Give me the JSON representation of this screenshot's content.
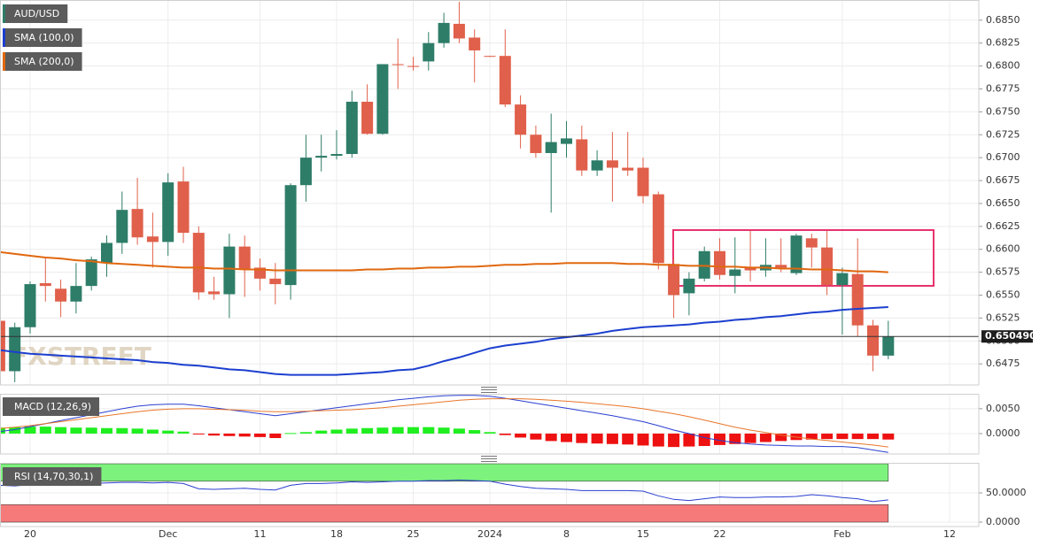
{
  "chart_data": [
    {
      "type": "candlestick",
      "grid": true,
      "categories": [
        null,
        null,
        "20",
        null,
        null,
        null,
        null,
        null,
        null,
        null,
        null,
        "Dec",
        null,
        null,
        null,
        null,
        null,
        "11",
        null,
        null,
        null,
        null,
        "18",
        null,
        null,
        null,
        null,
        "25",
        null,
        null,
        null,
        null,
        "2024",
        null,
        null,
        null,
        null,
        "8",
        null,
        null,
        null,
        null,
        "15",
        null,
        null,
        null,
        null,
        "22",
        null,
        null,
        null,
        null,
        null,
        null,
        null,
        "Feb",
        null,
        null,
        null,
        null,
        null,
        null,
        "12",
        null
      ],
      "series": [
        {
          "name": "AUD/USD",
          "up_color": "#2e7d68",
          "down_color": "#e0604b",
          "open": [
            0.6522,
            0.6467,
            0.6515,
            0.6563,
            0.6557,
            0.6543,
            0.656,
            0.6585,
            0.6607,
            0.6644,
            0.6614,
            0.6608,
            0.6674,
            0.6618,
            0.6554,
            0.6551,
            0.6603,
            0.658,
            0.6568,
            0.6561,
            0.667,
            0.67,
            0.6702,
            0.6704,
            0.6761,
            0.6726,
            0.6802,
            0.68,
            0.6805,
            0.6825,
            0.6846,
            0.6831,
            0.6811,
            0.6811,
            0.6758,
            0.6725,
            0.6705,
            0.6715,
            0.672,
            0.6686,
            0.6697,
            0.6689,
            0.6689,
            0.666,
            0.6584,
            0.6552,
            0.6568,
            0.6598,
            0.6571,
            0.658,
            0.6577,
            0.6583,
            0.6574,
            0.6612,
            0.6602,
            0.6561,
            0.6573,
            0.6517,
            0.6484,
            null,
            null,
            null,
            null,
            null
          ],
          "high": [
            0.653,
            0.652,
            0.6565,
            0.659,
            0.6567,
            0.6585,
            0.6592,
            0.6615,
            0.6663,
            0.6678,
            0.664,
            0.6683,
            0.669,
            0.6625,
            0.657,
            0.6617,
            0.6615,
            0.659,
            0.6585,
            0.6672,
            0.6725,
            0.6725,
            0.673,
            0.6773,
            0.678,
            0.6802,
            0.683,
            0.681,
            0.6837,
            0.6858,
            0.687,
            0.684,
            0.6811,
            0.684,
            0.6768,
            0.6735,
            0.6748,
            0.674,
            0.6735,
            0.6708,
            0.6728,
            0.6728,
            0.67,
            0.6663,
            0.659,
            0.6575,
            0.6603,
            0.6612,
            0.6613,
            0.662,
            0.6612,
            0.6612,
            0.6617,
            0.6617,
            0.662,
            0.658,
            0.6612,
            0.6523,
            0.6522,
            null,
            null,
            null,
            null,
            null
          ],
          "low": [
            0.646,
            0.6455,
            0.6508,
            0.6543,
            0.6526,
            0.653,
            0.6555,
            0.657,
            0.6595,
            0.6605,
            0.658,
            0.6593,
            0.6607,
            0.6545,
            0.6545,
            0.6525,
            0.6548,
            0.6555,
            0.654,
            0.6545,
            0.6652,
            0.6685,
            0.6698,
            0.67,
            0.6725,
            0.6725,
            0.6775,
            0.6795,
            0.6795,
            0.682,
            0.6825,
            0.6782,
            0.681,
            0.6755,
            0.671,
            0.67,
            0.664,
            0.67,
            0.668,
            0.668,
            0.6652,
            0.668,
            0.665,
            0.6578,
            0.6525,
            0.6528,
            0.6565,
            0.6567,
            0.6552,
            0.6565,
            0.657,
            0.6575,
            0.6572,
            0.658,
            0.655,
            0.6507,
            0.6505,
            0.6467,
            0.648,
            null,
            null,
            null,
            null,
            null
          ],
          "close": [
            0.6467,
            0.6515,
            0.6562,
            0.656,
            0.6543,
            0.656,
            0.6589,
            0.6607,
            0.6643,
            0.6613,
            0.6608,
            0.6673,
            0.6618,
            0.6553,
            0.6551,
            0.6603,
            0.6578,
            0.6568,
            0.6562,
            0.667,
            0.67,
            0.6702,
            0.6704,
            0.6761,
            0.6726,
            0.6802,
            0.6801,
            0.6799,
            0.6825,
            0.6847,
            0.683,
            0.6817,
            0.681,
            0.6758,
            0.6725,
            0.6705,
            0.6717,
            0.6721,
            0.6686,
            0.6697,
            0.6689,
            0.6686,
            0.6658,
            0.6585,
            0.655,
            0.6568,
            0.6598,
            0.6572,
            0.6578,
            0.6577,
            0.6583,
            0.658,
            0.6615,
            0.6602,
            0.6561,
            0.6574,
            0.6517,
            0.6484,
            0.6505,
            null,
            null,
            null,
            null,
            null
          ]
        },
        {
          "name": "SMA (100,0)",
          "color": "#1c3fcf",
          "values": [
            0.649,
            0.6488,
            0.6486,
            0.6485,
            0.6484,
            0.6483,
            0.6482,
            0.6481,
            0.648,
            0.6479,
            0.6477,
            0.6476,
            0.6474,
            0.6473,
            0.6471,
            0.6469,
            0.6468,
            0.6466,
            0.6464,
            0.6463,
            0.6463,
            0.6463,
            0.6463,
            0.6464,
            0.6465,
            0.6466,
            0.6468,
            0.6469,
            0.6473,
            0.6478,
            0.6482,
            0.6487,
            0.6492,
            0.6495,
            0.6497,
            0.6499,
            0.6502,
            0.6504,
            0.6506,
            0.6508,
            0.6511,
            0.6513,
            0.6515,
            0.6516,
            0.6517,
            0.6518,
            0.652,
            0.6521,
            0.6523,
            0.6524,
            0.6526,
            0.6527,
            0.6529,
            0.6531,
            0.6532,
            0.6534,
            0.6535,
            0.6536,
            0.6537,
            null,
            null,
            null,
            null,
            null
          ]
        },
        {
          "name": "SMA (200,0)",
          "color": "#e0680f",
          "values": [
            0.6597,
            0.6595,
            0.6593,
            0.6591,
            0.659,
            0.6588,
            0.6587,
            0.6585,
            0.6584,
            0.6583,
            0.6582,
            0.6581,
            0.658,
            0.658,
            0.6579,
            0.6579,
            0.6578,
            0.6578,
            0.6577,
            0.6577,
            0.6577,
            0.6577,
            0.6577,
            0.6577,
            0.6578,
            0.6578,
            0.6579,
            0.6579,
            0.658,
            0.658,
            0.6581,
            0.6581,
            0.6582,
            0.6583,
            0.6583,
            0.6584,
            0.6584,
            0.6585,
            0.6585,
            0.6585,
            0.6585,
            0.6584,
            0.6584,
            0.6583,
            0.6583,
            0.6582,
            0.6582,
            0.6581,
            0.6581,
            0.658,
            0.658,
            0.6579,
            0.6579,
            0.6578,
            0.6578,
            0.6577,
            0.6576,
            0.6576,
            0.6575,
            null,
            null,
            null,
            null,
            null
          ]
        }
      ],
      "last_price": {
        "value": 0.65049,
        "label": "0.650490"
      },
      "ylim": [
        0.6452,
        0.6872
      ],
      "yticks": [
        0.6475,
        {
          "value": 0.65,
          "label": "0.6500"
        },
        0.6525,
        {
          "value": 0.655,
          "label": "0.6550"
        },
        0.6575,
        {
          "value": 0.66,
          "label": "0.6600"
        },
        0.6625,
        {
          "value": 0.665,
          "label": "0.6650"
        },
        0.6675,
        {
          "value": 0.67,
          "label": "0.6700"
        },
        0.6725,
        {
          "value": 0.675,
          "label": "0.6750"
        },
        0.6775,
        {
          "value": 0.68,
          "label": "0.6800"
        },
        0.6825,
        {
          "value": 0.685,
          "label": "0.6850"
        }
      ]
    },
    {
      "type": "combo",
      "title": "MACD (12,26,9)",
      "grid": true,
      "series": [
        {
          "type": "bar",
          "up_color": "#1fee1f",
          "down_color": "#ee1111",
          "values": [
            0.0012,
            0.0013,
            0.0014,
            0.0014,
            0.0013,
            0.0012,
            0.0012,
            0.0011,
            0.0011,
            0.001,
            0.0008,
            0.0006,
            0.0004,
            -0.0001,
            -0.0004,
            -0.0005,
            -0.0006,
            -0.0007,
            -0.0009,
            0.0001,
            0.0003,
            0.0006,
            0.0008,
            0.001,
            0.0011,
            0.0012,
            0.0013,
            0.0013,
            0.0013,
            0.0012,
            0.001,
            0.0007,
            0.0003,
            -0.0003,
            -0.0008,
            -0.0012,
            -0.0015,
            -0.0017,
            -0.0019,
            -0.002,
            -0.0021,
            -0.0022,
            -0.0024,
            -0.0026,
            -0.0027,
            -0.0026,
            -0.0025,
            -0.0023,
            -0.0021,
            -0.0019,
            -0.0017,
            -0.0015,
            -0.0013,
            -0.0012,
            -0.0011,
            -0.0011,
            -0.0011,
            -0.0011,
            -0.0012,
            null,
            null,
            null,
            null,
            null
          ]
        },
        {
          "type": "line",
          "color": "#2a3fd0",
          "values": [
            0.0004,
            0.0008,
            0.0014,
            0.002,
            0.0026,
            0.0032,
            0.0038,
            0.0044,
            0.005,
            0.0055,
            0.0058,
            0.0059,
            0.0059,
            0.0056,
            0.0052,
            0.0048,
            0.0044,
            0.004,
            0.0036,
            0.004,
            0.0044,
            0.0048,
            0.0052,
            0.0056,
            0.006,
            0.0064,
            0.0068,
            0.0071,
            0.0074,
            0.0076,
            0.0077,
            0.0077,
            0.0075,
            0.0071,
            0.0066,
            0.0061,
            0.0056,
            0.0051,
            0.0046,
            0.0041,
            0.0036,
            0.003,
            0.0024,
            0.0016,
            0.0007,
            0.0,
            -0.0008,
            -0.0014,
            -0.0018,
            -0.0021,
            -0.0023,
            -0.0024,
            -0.0025,
            -0.0025,
            -0.0026,
            -0.0026,
            -0.0028,
            -0.0033,
            -0.0038,
            null,
            null,
            null,
            null,
            null
          ]
        },
        {
          "type": "line",
          "color": "#e8762a",
          "values": [
            0.001,
            0.0013,
            0.0016,
            0.002,
            0.0024,
            0.0028,
            0.0032,
            0.0036,
            0.004,
            0.0044,
            0.0047,
            0.0049,
            0.005,
            0.005,
            0.0049,
            0.0048,
            0.0047,
            0.0045,
            0.0044,
            0.0044,
            0.0045,
            0.0046,
            0.0047,
            0.0048,
            0.005,
            0.0052,
            0.0055,
            0.0058,
            0.0061,
            0.0064,
            0.0067,
            0.0069,
            0.007,
            0.007,
            0.007,
            0.0069,
            0.0067,
            0.0065,
            0.0063,
            0.006,
            0.0057,
            0.0054,
            0.005,
            0.0045,
            0.004,
            0.0034,
            0.0027,
            0.002,
            0.0013,
            0.0007,
            0.0002,
            -0.0003,
            -0.0007,
            -0.0011,
            -0.0014,
            -0.0017,
            -0.002,
            -0.0023,
            -0.0027,
            null,
            null,
            null,
            null,
            null
          ]
        }
      ],
      "ylim": [
        -0.0041,
        0.008
      ],
      "yticks": [
        {
          "value": 0.005,
          "label": "0.0050"
        },
        {
          "value": 0,
          "label": "0.0000"
        }
      ]
    },
    {
      "type": "rsi",
      "title": "RSI (14,70,30,1)",
      "grid": true,
      "overbought": 70,
      "oversold": 30,
      "overbought_color": "#7df27d",
      "oversold_color": "#f77a7a",
      "series": [
        {
          "type": "line",
          "color": "#2a3fd0",
          "values": [
            63,
            62,
            64,
            66,
            65,
            64,
            66,
            67,
            68,
            68,
            67,
            68,
            66,
            57,
            56,
            57,
            58,
            56,
            55,
            63,
            66,
            66,
            67,
            69,
            68,
            69,
            70,
            70,
            71,
            71,
            72,
            71,
            70,
            65,
            61,
            58,
            57,
            56,
            54,
            54,
            54,
            54,
            53,
            45,
            39,
            37,
            40,
            43,
            42,
            42,
            43,
            43,
            44,
            47,
            45,
            42,
            40,
            35,
            38,
            null,
            null,
            null,
            null,
            null
          ]
        }
      ],
      "ylim": [
        0,
        100
      ],
      "yticks": [
        {
          "value": 50,
          "label": "50.0000"
        },
        {
          "value": 0,
          "label": "0.0000"
        }
      ]
    }
  ]
}
